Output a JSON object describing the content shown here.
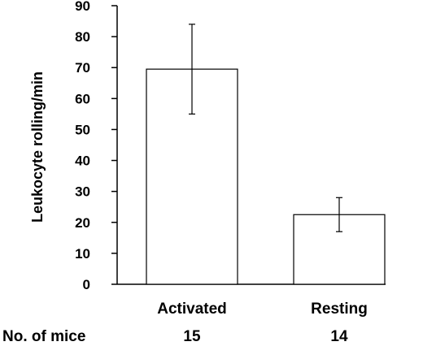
{
  "chart_data": {
    "type": "bar",
    "title": "",
    "xlabel": "",
    "ylabel": "Leukocyte rolling/min",
    "ylim": [
      0,
      90
    ],
    "yticks": [
      0,
      10,
      20,
      30,
      40,
      50,
      60,
      70,
      80,
      90
    ],
    "categories": [
      "Activated",
      "Resting"
    ],
    "values": [
      69.5,
      22.5
    ],
    "error_low": [
      55,
      17
    ],
    "error_high": [
      84,
      28
    ],
    "bar_fill": "#ffffff",
    "bar_stroke": "#000000",
    "grid": false,
    "legend": "none"
  },
  "footer": {
    "label": "No. of mice",
    "counts": [
      "15",
      "14"
    ]
  }
}
